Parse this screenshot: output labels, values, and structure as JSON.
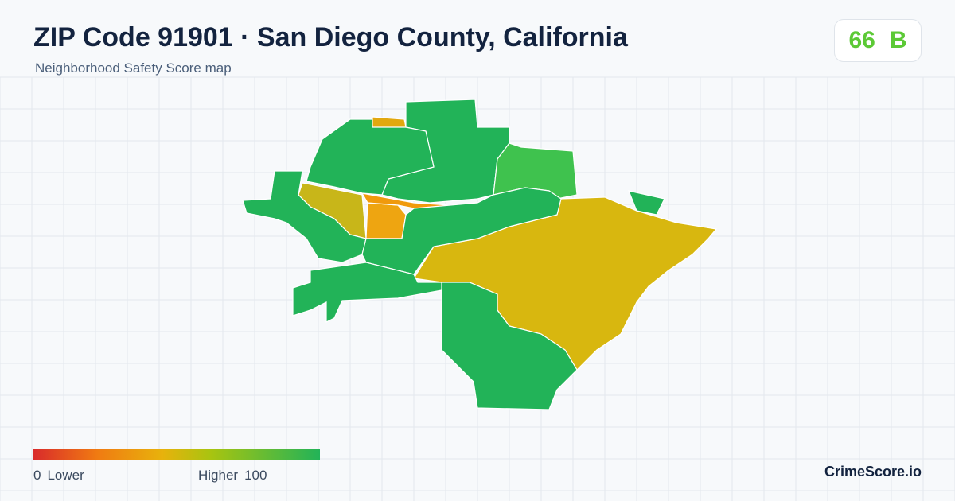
{
  "header": {
    "title": "ZIP Code 91901 · San Diego County, California",
    "subtitle": "Neighborhood Safety Score map",
    "score": 66,
    "grade": "B"
  },
  "legend": {
    "min": 0,
    "low_label": "Lower",
    "high_label": "Higher",
    "max": 100
  },
  "footer": {
    "brand": "CrimeScore.io"
  }
}
